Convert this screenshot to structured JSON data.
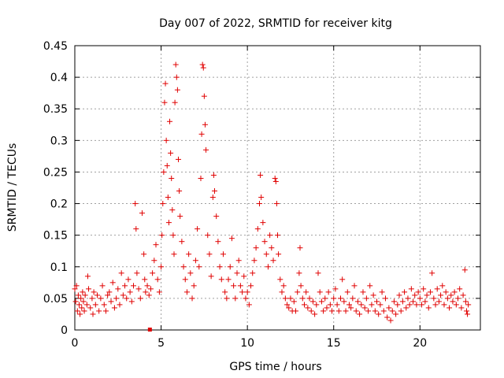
{
  "chart_data": {
    "type": "scatter",
    "title": "Day 007 of 2022, SRMTID for receiver kitg",
    "xlabel": "GPS time / hours",
    "ylabel": "SRMTID / TECUs",
    "xlim": [
      0,
      23.5
    ],
    "ylim": [
      0,
      0.45
    ],
    "x_ticks": [
      0,
      5,
      10,
      15,
      20
    ],
    "x_tick_labels": [
      "0",
      "5",
      "10",
      "15",
      "20"
    ],
    "y_ticks": [
      0,
      0.05,
      0.1,
      0.15,
      0.2,
      0.25,
      0.3,
      0.35,
      0.4,
      0.45
    ],
    "y_tick_labels": [
      "0",
      "0.05",
      "0.1",
      "0.15",
      "0.2",
      "0.25",
      "0.3",
      "0.35",
      "0.4",
      "0.45"
    ],
    "grid": true,
    "marker": "plus",
    "marker_color": "#e00000",
    "series": [
      {
        "name": "SRMTID",
        "points": [
          [
            0.0,
            0.065
          ],
          [
            0.05,
            0.045
          ],
          [
            0.1,
            0.07
          ],
          [
            0.15,
            0.03
          ],
          [
            0.2,
            0.055
          ],
          [
            0.25,
            0.04
          ],
          [
            0.3,
            0.025
          ],
          [
            0.35,
            0.05
          ],
          [
            0.4,
            0.035
          ],
          [
            0.45,
            0.06
          ],
          [
            0.5,
            0.045
          ],
          [
            0.55,
            0.03
          ],
          [
            0.6,
            0.055
          ],
          [
            0.7,
            0.04
          ],
          [
            0.75,
            0.085
          ],
          [
            0.8,
            0.065
          ],
          [
            0.9,
            0.035
          ],
          [
            1.0,
            0.05
          ],
          [
            1.05,
            0.025
          ],
          [
            1.1,
            0.06
          ],
          [
            1.2,
            0.04
          ],
          [
            1.3,
            0.055
          ],
          [
            1.4,
            0.03
          ],
          [
            1.5,
            0.05
          ],
          [
            1.6,
            0.07
          ],
          [
            1.7,
            0.04
          ],
          [
            1.8,
            0.03
          ],
          [
            1.9,
            0.055
          ],
          [
            2.0,
            0.06
          ],
          [
            2.1,
            0.045
          ],
          [
            2.2,
            0.075
          ],
          [
            2.3,
            0.035
          ],
          [
            2.4,
            0.05
          ],
          [
            2.5,
            0.065
          ],
          [
            2.6,
            0.04
          ],
          [
            2.7,
            0.09
          ],
          [
            2.8,
            0.055
          ],
          [
            2.9,
            0.07
          ],
          [
            3.0,
            0.05
          ],
          [
            3.1,
            0.08
          ],
          [
            3.2,
            0.06
          ],
          [
            3.3,
            0.045
          ],
          [
            3.4,
            0.07
          ],
          [
            3.5,
            0.2
          ],
          [
            3.55,
            0.16
          ],
          [
            3.6,
            0.09
          ],
          [
            3.7,
            0.065
          ],
          [
            3.8,
            0.05
          ],
          [
            3.9,
            0.185
          ],
          [
            4.0,
            0.12
          ],
          [
            4.05,
            0.08
          ],
          [
            4.1,
            0.06
          ],
          [
            4.2,
            0.07
          ],
          [
            4.3,
            0.055
          ],
          [
            4.4,
            0.065
          ],
          [
            4.5,
            0.09
          ],
          [
            4.6,
            0.11
          ],
          [
            4.7,
            0.135
          ],
          [
            4.8,
            0.08
          ],
          [
            4.9,
            0.06
          ],
          [
            5.0,
            0.1
          ],
          [
            5.05,
            0.15
          ],
          [
            5.1,
            0.2
          ],
          [
            5.15,
            0.25
          ],
          [
            5.2,
            0.36
          ],
          [
            5.25,
            0.39
          ],
          [
            5.3,
            0.3
          ],
          [
            5.35,
            0.26
          ],
          [
            5.4,
            0.21
          ],
          [
            5.45,
            0.17
          ],
          [
            5.5,
            0.33
          ],
          [
            5.55,
            0.28
          ],
          [
            5.6,
            0.24
          ],
          [
            5.65,
            0.19
          ],
          [
            5.7,
            0.15
          ],
          [
            5.75,
            0.12
          ],
          [
            5.8,
            0.36
          ],
          [
            5.85,
            0.42
          ],
          [
            5.9,
            0.4
          ],
          [
            5.95,
            0.38
          ],
          [
            6.0,
            0.27
          ],
          [
            6.05,
            0.22
          ],
          [
            6.1,
            0.18
          ],
          [
            6.2,
            0.14
          ],
          [
            6.3,
            0.1
          ],
          [
            6.4,
            0.08
          ],
          [
            6.5,
            0.06
          ],
          [
            6.6,
            0.12
          ],
          [
            6.7,
            0.09
          ],
          [
            6.8,
            0.05
          ],
          [
            6.9,
            0.07
          ],
          [
            7.0,
            0.11
          ],
          [
            7.1,
            0.16
          ],
          [
            7.2,
            0.1
          ],
          [
            7.3,
            0.24
          ],
          [
            7.35,
            0.31
          ],
          [
            7.4,
            0.42
          ],
          [
            7.45,
            0.415
          ],
          [
            7.5,
            0.37
          ],
          [
            7.55,
            0.325
          ],
          [
            7.6,
            0.285
          ],
          [
            7.7,
            0.15
          ],
          [
            7.8,
            0.12
          ],
          [
            7.9,
            0.085
          ],
          [
            8.0,
            0.21
          ],
          [
            8.05,
            0.245
          ],
          [
            8.1,
            0.22
          ],
          [
            8.2,
            0.18
          ],
          [
            8.3,
            0.14
          ],
          [
            8.4,
            0.1
          ],
          [
            8.5,
            0.08
          ],
          [
            8.6,
            0.12
          ],
          [
            8.7,
            0.06
          ],
          [
            8.8,
            0.05
          ],
          [
            8.9,
            0.08
          ],
          [
            9.0,
            0.1
          ],
          [
            9.1,
            0.145
          ],
          [
            9.2,
            0.07
          ],
          [
            9.3,
            0.05
          ],
          [
            9.4,
            0.09
          ],
          [
            9.5,
            0.11
          ],
          [
            9.6,
            0.07
          ],
          [
            9.7,
            0.06
          ],
          [
            9.8,
            0.085
          ],
          [
            9.9,
            0.05
          ],
          [
            10.0,
            0.06
          ],
          [
            10.1,
            0.04
          ],
          [
            10.2,
            0.07
          ],
          [
            10.3,
            0.09
          ],
          [
            10.4,
            0.11
          ],
          [
            10.5,
            0.13
          ],
          [
            10.6,
            0.16
          ],
          [
            10.7,
            0.2
          ],
          [
            10.75,
            0.245
          ],
          [
            10.8,
            0.21
          ],
          [
            10.9,
            0.17
          ],
          [
            11.0,
            0.14
          ],
          [
            11.1,
            0.12
          ],
          [
            11.2,
            0.1
          ],
          [
            11.3,
            0.15
          ],
          [
            11.4,
            0.13
          ],
          [
            11.5,
            0.11
          ],
          [
            11.6,
            0.24
          ],
          [
            11.65,
            0.235
          ],
          [
            11.7,
            0.2
          ],
          [
            11.75,
            0.15
          ],
          [
            11.8,
            0.12
          ],
          [
            11.9,
            0.08
          ],
          [
            12.0,
            0.06
          ],
          [
            12.1,
            0.07
          ],
          [
            12.2,
            0.05
          ],
          [
            12.3,
            0.04
          ],
          [
            12.4,
            0.035
          ],
          [
            12.5,
            0.05
          ],
          [
            12.6,
            0.03
          ],
          [
            12.7,
            0.045
          ],
          [
            12.8,
            0.03
          ],
          [
            12.9,
            0.06
          ],
          [
            13.0,
            0.09
          ],
          [
            13.05,
            0.13
          ],
          [
            13.1,
            0.07
          ],
          [
            13.2,
            0.05
          ],
          [
            13.3,
            0.04
          ],
          [
            13.4,
            0.06
          ],
          [
            13.5,
            0.035
          ],
          [
            13.6,
            0.05
          ],
          [
            13.7,
            0.03
          ],
          [
            13.8,
            0.045
          ],
          [
            13.9,
            0.025
          ],
          [
            14.0,
            0.04
          ],
          [
            14.1,
            0.09
          ],
          [
            14.2,
            0.06
          ],
          [
            14.3,
            0.045
          ],
          [
            14.4,
            0.03
          ],
          [
            14.5,
            0.05
          ],
          [
            14.6,
            0.035
          ],
          [
            14.7,
            0.06
          ],
          [
            14.8,
            0.04
          ],
          [
            14.9,
            0.03
          ],
          [
            15.0,
            0.05
          ],
          [
            15.1,
            0.065
          ],
          [
            15.2,
            0.04
          ],
          [
            15.3,
            0.03
          ],
          [
            15.4,
            0.05
          ],
          [
            15.5,
            0.08
          ],
          [
            15.6,
            0.045
          ],
          [
            15.7,
            0.03
          ],
          [
            15.8,
            0.06
          ],
          [
            15.9,
            0.04
          ],
          [
            16.0,
            0.035
          ],
          [
            16.1,
            0.05
          ],
          [
            16.2,
            0.07
          ],
          [
            16.3,
            0.03
          ],
          [
            16.4,
            0.045
          ],
          [
            16.5,
            0.025
          ],
          [
            16.6,
            0.04
          ],
          [
            16.7,
            0.06
          ],
          [
            16.8,
            0.035
          ],
          [
            16.9,
            0.05
          ],
          [
            17.0,
            0.03
          ],
          [
            17.1,
            0.07
          ],
          [
            17.2,
            0.04
          ],
          [
            17.3,
            0.055
          ],
          [
            17.4,
            0.03
          ],
          [
            17.5,
            0.045
          ],
          [
            17.6,
            0.025
          ],
          [
            17.7,
            0.04
          ],
          [
            17.8,
            0.06
          ],
          [
            17.9,
            0.03
          ],
          [
            18.0,
            0.05
          ],
          [
            18.1,
            0.02
          ],
          [
            18.2,
            0.035
          ],
          [
            18.3,
            0.015
          ],
          [
            18.4,
            0.03
          ],
          [
            18.5,
            0.045
          ],
          [
            18.6,
            0.025
          ],
          [
            18.7,
            0.04
          ],
          [
            18.8,
            0.055
          ],
          [
            18.9,
            0.03
          ],
          [
            19.0,
            0.045
          ],
          [
            19.1,
            0.06
          ],
          [
            19.2,
            0.035
          ],
          [
            19.3,
            0.05
          ],
          [
            19.4,
            0.04
          ],
          [
            19.5,
            0.065
          ],
          [
            19.6,
            0.045
          ],
          [
            19.7,
            0.055
          ],
          [
            19.8,
            0.04
          ],
          [
            19.9,
            0.06
          ],
          [
            20.0,
            0.05
          ],
          [
            20.1,
            0.04
          ],
          [
            20.2,
            0.065
          ],
          [
            20.3,
            0.045
          ],
          [
            20.4,
            0.055
          ],
          [
            20.5,
            0.035
          ],
          [
            20.6,
            0.06
          ],
          [
            20.7,
            0.09
          ],
          [
            20.8,
            0.05
          ],
          [
            20.9,
            0.04
          ],
          [
            21.0,
            0.065
          ],
          [
            21.1,
            0.045
          ],
          [
            21.2,
            0.055
          ],
          [
            21.3,
            0.07
          ],
          [
            21.4,
            0.04
          ],
          [
            21.5,
            0.06
          ],
          [
            21.6,
            0.05
          ],
          [
            21.7,
            0.035
          ],
          [
            21.8,
            0.055
          ],
          [
            21.9,
            0.045
          ],
          [
            22.0,
            0.06
          ],
          [
            22.1,
            0.04
          ],
          [
            22.2,
            0.05
          ],
          [
            22.3,
            0.065
          ],
          [
            22.4,
            0.035
          ],
          [
            22.5,
            0.055
          ],
          [
            22.6,
            0.095
          ],
          [
            22.65,
            0.045
          ],
          [
            22.7,
            0.03
          ],
          [
            22.75,
            0.025
          ],
          [
            22.8,
            0.04
          ]
        ]
      }
    ],
    "extra_marker": {
      "x": 4.35,
      "y": 0.0,
      "shape": "square"
    }
  }
}
